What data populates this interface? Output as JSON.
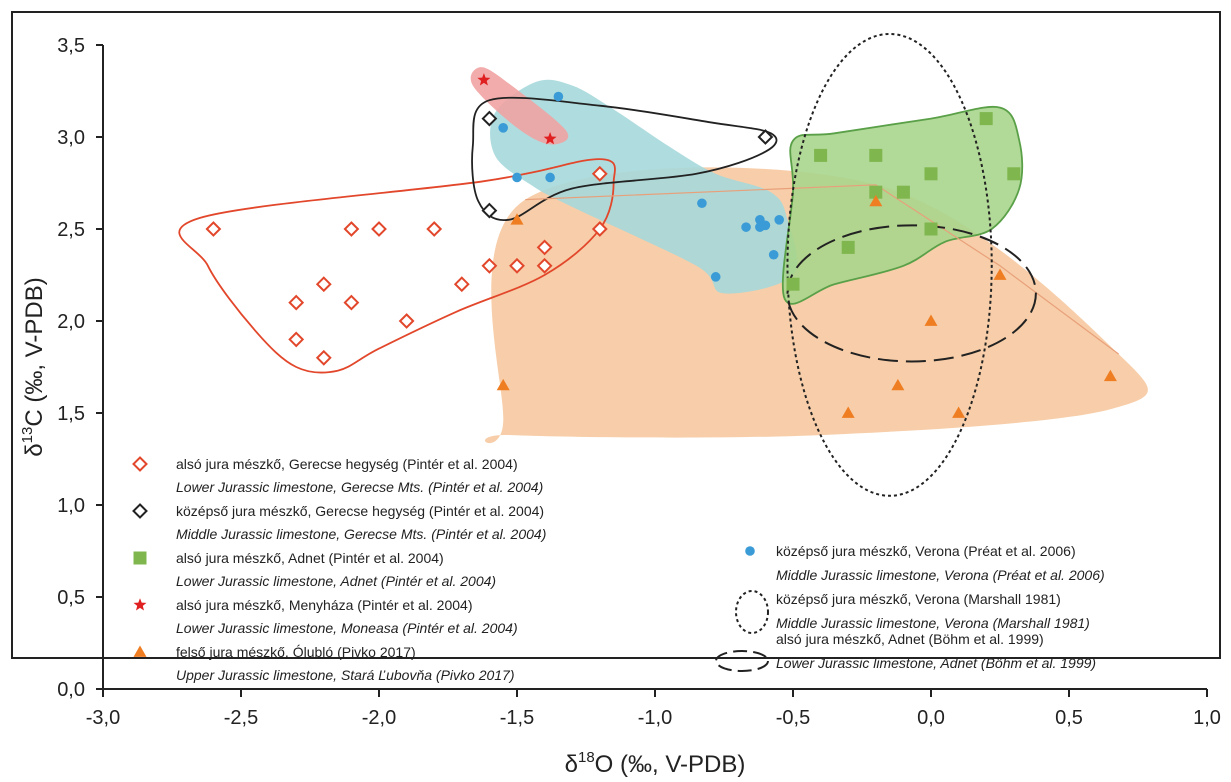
{
  "chart_data": {
    "type": "scatter",
    "xlabel": {
      "pre": "δ",
      "sup": "18",
      "post": "O (‰, V-PDB)"
    },
    "ylabel": {
      "pre": "δ",
      "sup": "13",
      "post": "C (‰, V-PDB)"
    },
    "xlim": [
      -3.0,
      1.0
    ],
    "ylim": [
      0.0,
      3.5
    ],
    "xticks": [
      "-3,0",
      "-2,5",
      "-2,0",
      "-1,5",
      "-1,0",
      "-0,5",
      "0,0",
      "0,5",
      "1,0"
    ],
    "yticks": [
      "0,0",
      "0,5",
      "1,0",
      "1,5",
      "2,0",
      "2,5",
      "3,0",
      "3,5"
    ],
    "grid": false,
    "legend_placement": "bottom",
    "series": [
      {
        "name": "alsó jura mészkő, Gerecse hegység (Pintér et al. 2004)",
        "name_en": "Lower Jurassic limestone, Gerecse Mts. (Pintér et al. 2004)",
        "marker": "diamond-open",
        "color": "#e2472b",
        "points": [
          [
            -2.6,
            2.5
          ],
          [
            -2.3,
            2.1
          ],
          [
            -2.3,
            1.9
          ],
          [
            -2.2,
            2.2
          ],
          [
            -2.2,
            1.8
          ],
          [
            -2.1,
            2.5
          ],
          [
            -2.1,
            2.1
          ],
          [
            -2.0,
            2.5
          ],
          [
            -1.9,
            2.0
          ],
          [
            -1.8,
            2.5
          ],
          [
            -1.7,
            2.2
          ],
          [
            -1.6,
            2.3
          ],
          [
            -1.5,
            2.3
          ],
          [
            -1.4,
            2.4
          ],
          [
            -1.4,
            2.3
          ],
          [
            -1.2,
            2.8
          ],
          [
            -1.2,
            2.5
          ]
        ]
      },
      {
        "name": "középső jura mészkő, Gerecse hegység (Pintér et al. 2004)",
        "name_en": "Middle Jurassic limestone, Gerecse Mts. (Pintér et al. 2004)",
        "marker": "diamond-open",
        "color": "#222222",
        "points": [
          [
            -1.6,
            3.1
          ],
          [
            -1.6,
            2.6
          ],
          [
            -0.6,
            3.0
          ]
        ]
      },
      {
        "name": "alsó jura mészkő, Adnet (Pintér et al. 2004)",
        "name_en": "Lower Jurassic limestone, Adnet (Pintér et al. 2004)",
        "marker": "square",
        "color": "#7fb74e",
        "points": [
          [
            -0.4,
            2.9
          ],
          [
            -0.2,
            2.9
          ],
          [
            -0.2,
            2.7
          ],
          [
            -0.1,
            2.7
          ],
          [
            0.0,
            2.8
          ],
          [
            0.2,
            3.1
          ],
          [
            0.3,
            2.8
          ],
          [
            -0.3,
            2.4
          ],
          [
            0.0,
            2.5
          ],
          [
            -0.5,
            2.2
          ]
        ]
      },
      {
        "name": "alsó jura mészkő, Menyháza (Pintér et al. 2004)",
        "name_en": "Lower Jurassic limestone, Moneasa (Pintér et al. 2004)",
        "marker": "star",
        "color": "#e02020",
        "points": [
          [
            -1.62,
            3.31
          ],
          [
            -1.38,
            2.99
          ]
        ]
      },
      {
        "name": "felső jura mészkő, Ólubló (Pivko 2017)",
        "name_en": "Upper Jurassic limestone, Stará Ľubovňa (Pivko 2017)",
        "marker": "triangle",
        "color": "#ef7d22",
        "points": [
          [
            -1.5,
            2.55
          ],
          [
            -1.55,
            1.65
          ],
          [
            -0.2,
            2.65
          ],
          [
            0.25,
            2.25
          ],
          [
            0.0,
            2.0
          ],
          [
            -0.12,
            1.65
          ],
          [
            0.65,
            1.7
          ],
          [
            -0.3,
            1.5
          ],
          [
            0.1,
            1.5
          ]
        ]
      },
      {
        "name": "középső jura mészkő, Verona (Préat et al. 2006)",
        "name_en": "Middle Jurassic  limestone, Verona (Préat et al. 2006)",
        "marker": "circle",
        "color": "#3a9bd6",
        "points": [
          [
            -1.35,
            3.22
          ],
          [
            -1.55,
            3.05
          ],
          [
            -1.5,
            2.78
          ],
          [
            -1.38,
            2.78
          ],
          [
            -0.83,
            2.64
          ],
          [
            -0.78,
            2.24
          ],
          [
            -0.67,
            2.51
          ],
          [
            -0.62,
            2.55
          ],
          [
            -0.62,
            2.51
          ],
          [
            -0.6,
            2.52
          ],
          [
            -0.55,
            2.55
          ],
          [
            -0.57,
            2.36
          ]
        ]
      }
    ],
    "ellipses": [
      {
        "name": "középső jura mészkő, Verona (Marshall 1981)",
        "name_en": "Middle Jurassic  limestone, Verona (Marshall 1981)",
        "style": "dotted",
        "center": [
          -0.15,
          2.305
        ],
        "rx": 0.37,
        "ry": 1.255
      },
      {
        "name": "alsó jura mészkő, Adnet (Böhm et al. 1999)",
        "name_en": "Lower Jurassic limestone, Adnet (Böhm et al. 1999)",
        "style": "dashed",
        "center": [
          -0.07,
          2.15
        ],
        "rx": 0.45,
        "ry": 0.37
      }
    ],
    "regions": [
      {
        "series": 4,
        "fill": "#f6c9a0",
        "stroke": "none",
        "polygon": [
          [
            -1.47,
            2.66
          ],
          [
            -0.2,
            2.74
          ],
          [
            0.68,
            1.82
          ],
          [
            0.65,
            1.52
          ],
          [
            -0.4,
            1.38
          ],
          [
            -1.52,
            1.38
          ],
          [
            -1.55,
            1.45
          ]
        ]
      },
      {
        "series": 5,
        "fill": "#a6d8da",
        "stroke": "none",
        "polygon": [
          [
            -1.43,
            3.3
          ],
          [
            -1.3,
            3.28
          ],
          [
            -1.15,
            3.15
          ],
          [
            -0.95,
            2.95
          ],
          [
            -0.78,
            2.8
          ],
          [
            -0.58,
            2.7
          ],
          [
            -0.52,
            2.55
          ],
          [
            -0.5,
            2.25
          ],
          [
            -0.75,
            2.15
          ],
          [
            -0.85,
            2.3
          ],
          [
            -1.3,
            2.62
          ],
          [
            -1.45,
            2.74
          ],
          [
            -1.58,
            2.9
          ],
          [
            -1.58,
            3.13
          ]
        ]
      },
      {
        "series": 2,
        "fill": "#a9d58c",
        "stroke": "#5aa048",
        "polygon": [
          [
            -0.5,
            2.98
          ],
          [
            -0.35,
            3.02
          ],
          [
            0.0,
            3.1
          ],
          [
            0.25,
            3.16
          ],
          [
            0.32,
            2.98
          ],
          [
            0.32,
            2.72
          ],
          [
            0.22,
            2.5
          ],
          [
            0.05,
            2.43
          ],
          [
            -0.1,
            2.3
          ],
          [
            -0.35,
            2.2
          ],
          [
            -0.53,
            2.12
          ],
          [
            -0.5,
            2.7
          ]
        ]
      },
      {
        "series": 3,
        "fill": "#f1a3a3",
        "stroke": "none",
        "polygon": [
          [
            -1.63,
            3.38
          ],
          [
            -1.52,
            3.28
          ],
          [
            -1.32,
            3.03
          ],
          [
            -1.38,
            2.96
          ],
          [
            -1.5,
            3.05
          ],
          [
            -1.66,
            3.28
          ]
        ]
      },
      {
        "series": 0,
        "fill": "none",
        "stroke": "#e2472b",
        "polygon": [
          [
            -2.65,
            2.56
          ],
          [
            -1.62,
            2.76
          ],
          [
            -1.2,
            2.88
          ],
          [
            -1.15,
            2.75
          ],
          [
            -1.2,
            2.5
          ],
          [
            -1.4,
            2.25
          ],
          [
            -1.72,
            2.05
          ],
          [
            -2.0,
            1.85
          ],
          [
            -2.15,
            1.73
          ],
          [
            -2.3,
            1.75
          ],
          [
            -2.45,
            1.95
          ],
          [
            -2.62,
            2.3
          ]
        ]
      },
      {
        "series": 1,
        "fill": "none",
        "stroke": "#222222",
        "polygon": [
          [
            -1.6,
            3.2
          ],
          [
            -1.2,
            3.17
          ],
          [
            -0.8,
            3.08
          ],
          [
            -0.58,
            3.02
          ],
          [
            -0.6,
            2.92
          ],
          [
            -0.85,
            2.8
          ],
          [
            -1.3,
            2.72
          ],
          [
            -1.53,
            2.55
          ],
          [
            -1.64,
            2.65
          ],
          [
            -1.66,
            2.95
          ]
        ]
      }
    ],
    "faint_line": {
      "color": "#e8a07a",
      "points": [
        [
          -1.47,
          2.66
        ],
        [
          -0.2,
          2.74
        ],
        [
          0.25,
          2.3
        ],
        [
          0.68,
          1.82
        ]
      ]
    }
  }
}
